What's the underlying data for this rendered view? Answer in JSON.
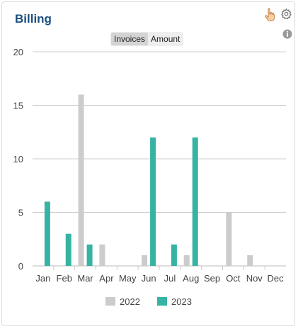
{
  "widget": {
    "title": "Billing",
    "toggle": [
      {
        "label": "Invoices",
        "active": true
      },
      {
        "label": "Amount",
        "active": false
      }
    ]
  },
  "icons": [
    "hand-pointer-icon",
    "gear-icon",
    "info-icon"
  ],
  "colors": {
    "2022": "#cccccc",
    "2023": "#36b3a3",
    "title": "#1a4f7f"
  },
  "chart_data": {
    "type": "bar",
    "categories": [
      "Jan",
      "Feb",
      "Mar",
      "Apr",
      "May",
      "Jun",
      "Jul",
      "Aug",
      "Sep",
      "Oct",
      "Nov",
      "Dec"
    ],
    "series": [
      {
        "name": "2022",
        "color": "#cccccc",
        "values": [
          0,
          0,
          16,
          2,
          0,
          1,
          0,
          1,
          0,
          5,
          1,
          0
        ]
      },
      {
        "name": "2023",
        "color": "#36b3a3",
        "values": [
          6,
          3,
          2,
          0,
          0,
          12,
          2,
          12,
          0,
          0,
          0,
          0
        ]
      }
    ],
    "ylim": [
      0,
      20
    ],
    "yticks": [
      0,
      5,
      10,
      15,
      20
    ],
    "grid": true,
    "legend": "bottom"
  }
}
